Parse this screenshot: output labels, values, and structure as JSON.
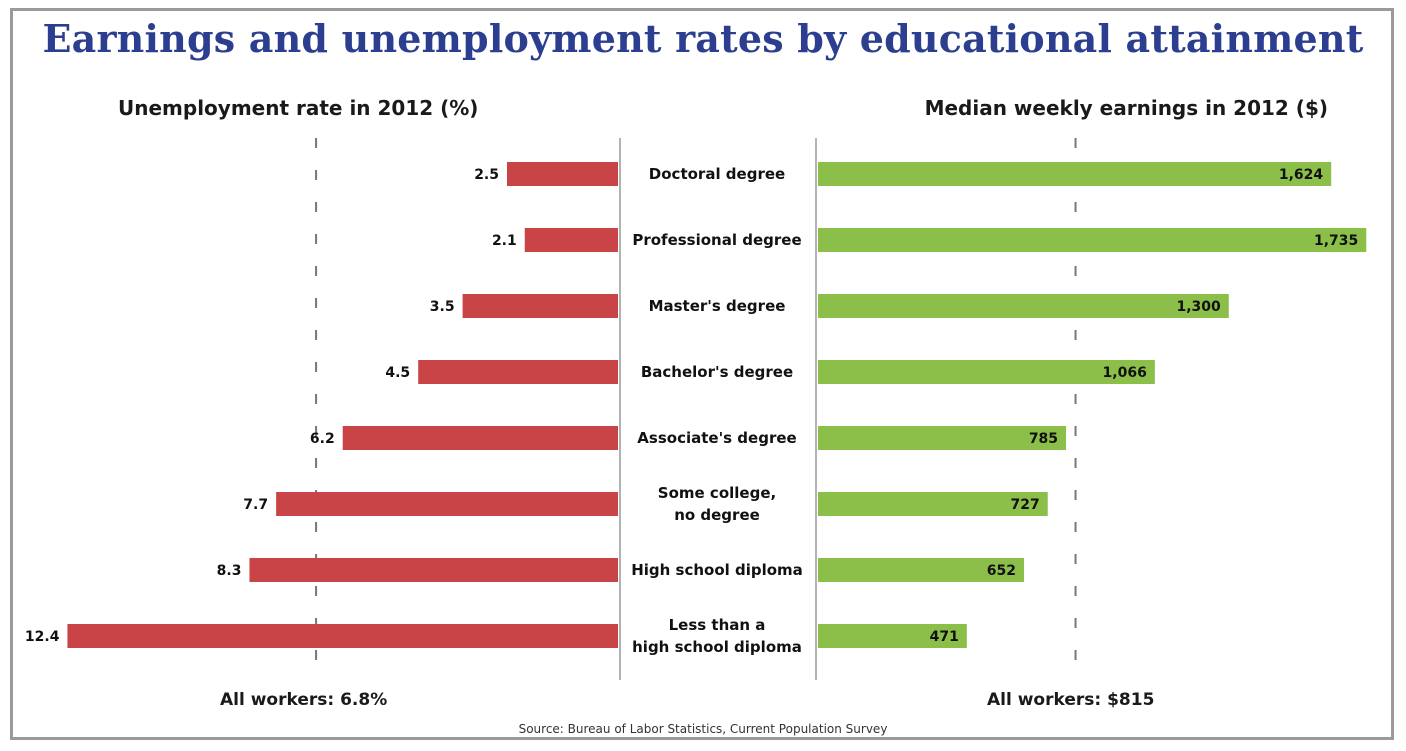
{
  "chart_data": {
    "type": "bar",
    "title": "Earnings and unemployment rates by educational attainment",
    "categories": [
      "Doctoral degree",
      "Professional degree",
      "Master's degree",
      "Bachelor's degree",
      "Associate's degree",
      "Some college, no degree",
      "High school diploma",
      "Less than a high school diploma"
    ],
    "series": [
      {
        "name": "Unemployment rate in 2012 (%)",
        "values": [
          2.5,
          2.1,
          3.5,
          4.5,
          6.2,
          7.7,
          8.3,
          12.4
        ],
        "labels": [
          "2.5",
          "2.1",
          "3.5",
          "4.5",
          "6.2",
          "7.7",
          "8.3",
          "12.4"
        ],
        "color": "#c84446",
        "reference": {
          "label": "All workers: 6.8%",
          "value": 6.8
        }
      },
      {
        "name": "Median weekly earnings in 2012 ($)",
        "values": [
          1624,
          1735,
          1300,
          1066,
          785,
          727,
          652,
          471
        ],
        "labels": [
          "1,624",
          "1,735",
          "1,300",
          "1,066",
          "785",
          "727",
          "652",
          "471"
        ],
        "color": "#8cbf4a",
        "reference": {
          "label": "All workers: $815",
          "value": 815
        }
      }
    ],
    "source": "Source: Bureau of Labor Statistics, Current Population Survey"
  }
}
